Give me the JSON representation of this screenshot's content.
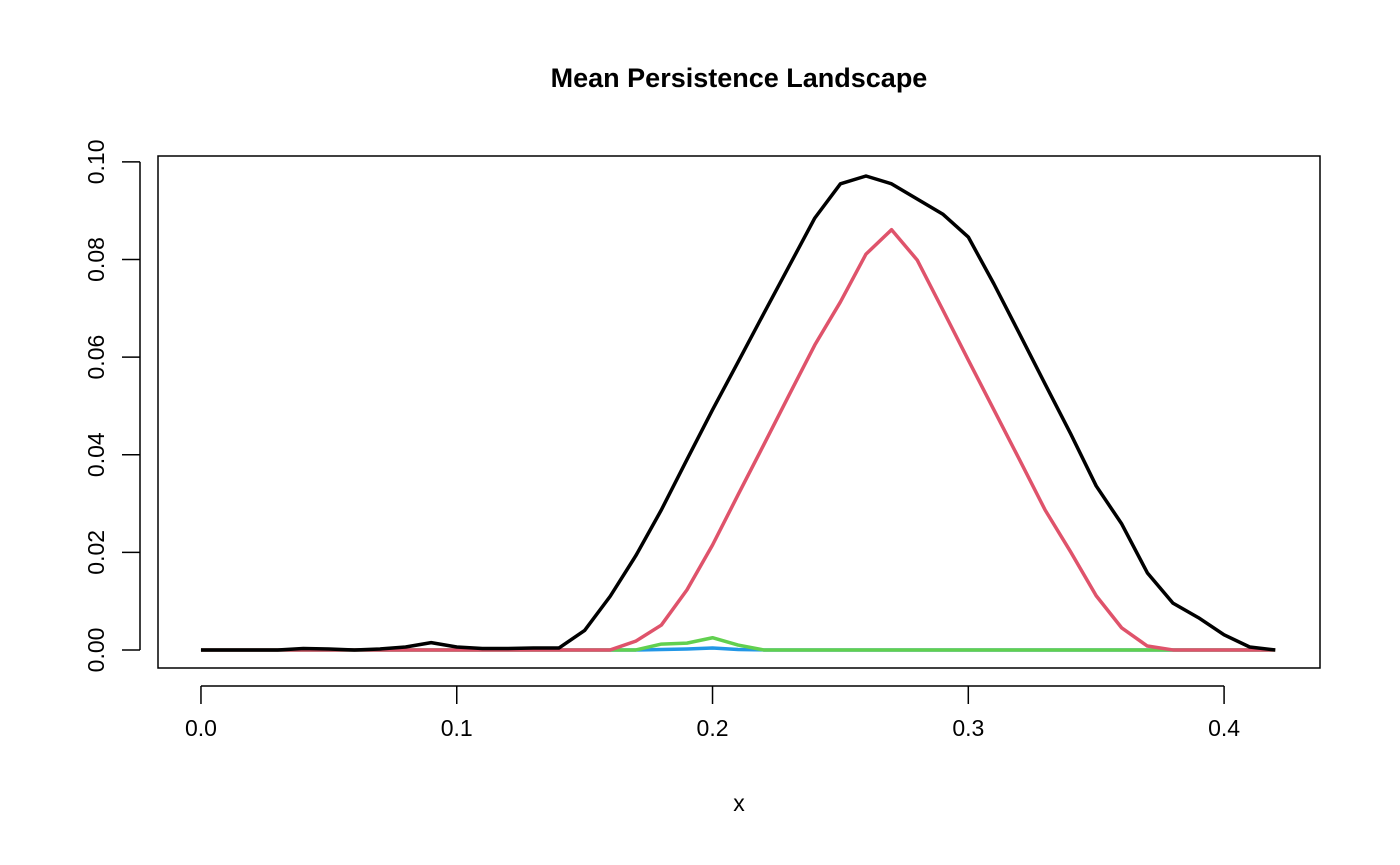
{
  "chart_data": {
    "type": "line",
    "title": "Mean Persistence Landscape",
    "x_label": "x",
    "x": [
      0,
      0.01,
      0.02,
      0.03,
      0.04,
      0.05,
      0.06,
      0.07,
      0.08,
      0.09,
      0.1,
      0.11,
      0.12,
      0.13,
      0.14,
      0.15,
      0.16,
      0.17,
      0.18,
      0.19,
      0.2,
      0.21,
      0.22,
      0.23,
      0.24,
      0.25,
      0.26,
      0.27,
      0.28,
      0.29,
      0.3,
      0.31,
      0.32,
      0.33,
      0.34,
      0.35,
      0.36,
      0.37,
      0.38,
      0.39,
      0.4,
      0.41,
      0.42
    ],
    "series": [
      {
        "color": "#000000",
        "values": [
          0,
          0,
          0,
          0,
          0.0003,
          0.0002,
          0,
          0.0002,
          0.0006,
          0.0015,
          0.0006,
          0.0003,
          0.0003,
          0.0004,
          0.0004,
          0.004,
          0.011,
          0.0193,
          0.0287,
          0.039,
          0.0492,
          0.059,
          0.0689,
          0.0787,
          0.0885,
          0.0955,
          0.0971,
          0.0955,
          0.0924,
          0.0893,
          0.0846,
          0.075,
          0.0648,
          0.0545,
          0.0443,
          0.0336,
          0.0258,
          0.0158,
          0.0096,
          0.0066,
          0.0031,
          0.0006,
          0
        ]
      },
      {
        "color": "#DF536B",
        "values": [
          0,
          0,
          0,
          0,
          0,
          0,
          0,
          0,
          0,
          0,
          0,
          0,
          0,
          0,
          0,
          0,
          0,
          0.0018,
          0.0051,
          0.0123,
          0.0215,
          0.0318,
          0.042,
          0.0523,
          0.0625,
          0.0713,
          0.0811,
          0.0861,
          0.0799,
          0.0697,
          0.0594,
          0.0492,
          0.039,
          0.0287,
          0.0201,
          0.0111,
          0.0045,
          0.0008,
          0,
          0,
          0,
          0,
          0
        ]
      },
      {
        "color": "#61D04F",
        "values": [
          0,
          0,
          0,
          0,
          0,
          0,
          0,
          0,
          0,
          0,
          0,
          0,
          0,
          0,
          0,
          0,
          0,
          0,
          0.0012,
          0.0014,
          0.0025,
          0.001,
          0,
          0,
          0,
          0,
          0,
          0,
          0,
          0,
          0,
          0,
          0,
          0,
          0,
          0,
          0,
          0,
          0,
          0,
          0,
          0,
          0
        ]
      },
      {
        "color": "#2297E6",
        "values": [
          0,
          0,
          0,
          0,
          0,
          0,
          0,
          0,
          0,
          0,
          0,
          0,
          0,
          0,
          0,
          0,
          0,
          0,
          0.0001,
          0.0002,
          0.0004,
          0.0001,
          0,
          0,
          0,
          0,
          0,
          0,
          0,
          0,
          0,
          0,
          0,
          0,
          0,
          0,
          0,
          0,
          0,
          0,
          0,
          0,
          0
        ]
      }
    ],
    "xlim": [
      -0.0168,
      0.4375
    ],
    "ylim": [
      -0.0037,
      0.1012
    ],
    "xticks": [
      {
        "value": 0,
        "label": "0.0"
      },
      0.1,
      0.2,
      0.3,
      0.4
    ],
    "yticks": [
      {
        "value": 0,
        "label": "0.00"
      },
      0.02,
      0.04,
      0.06,
      0.08,
      {
        "value": 0.1,
        "label": "0.10"
      }
    ]
  }
}
